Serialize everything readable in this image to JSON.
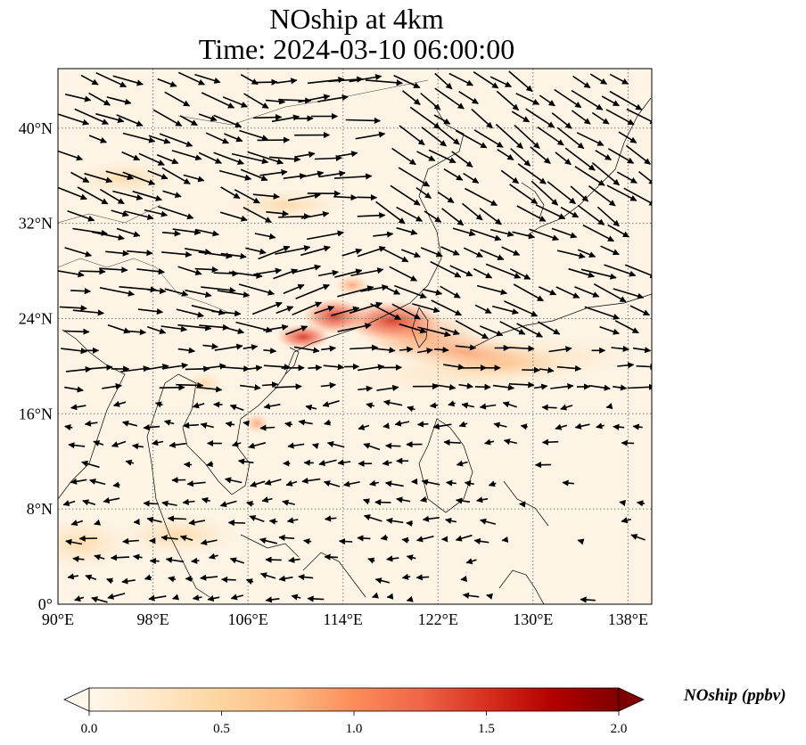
{
  "title": {
    "line1": "NOship at 4km",
    "line2": "Time: 2024-03-10 06:00:00"
  },
  "map": {
    "projection": "PlateCarree",
    "lon_range": [
      90,
      140
    ],
    "lat_range": [
      0,
      45
    ],
    "lon_ticks": [
      {
        "value": 90,
        "label": "90°E"
      },
      {
        "value": 98,
        "label": "98°E"
      },
      {
        "value": 106,
        "label": "106°E"
      },
      {
        "value": 114,
        "label": "114°E"
      },
      {
        "value": 122,
        "label": "122°E"
      },
      {
        "value": 130,
        "label": "130°E"
      },
      {
        "value": 138,
        "label": "138°E"
      }
    ],
    "lat_ticks": [
      {
        "value": 0,
        "label": "0°"
      },
      {
        "value": 8,
        "label": "8°N"
      },
      {
        "value": 16,
        "label": "16°N"
      },
      {
        "value": 24,
        "label": "24°N"
      },
      {
        "value": 32,
        "label": "32°N"
      },
      {
        "value": 40,
        "label": "40°N"
      }
    ],
    "gridlines": "dotted grey",
    "field_colormap": "OrRd",
    "wind_vectors": "black arrows"
  },
  "colorbar": {
    "label": "NOship (ppbv)",
    "min": 0.0,
    "max": 2.0,
    "extend": "both",
    "ticks": [
      {
        "value": 0.0,
        "label": "0.0"
      },
      {
        "value": 0.5,
        "label": "0.5"
      },
      {
        "value": 1.0,
        "label": "1.0"
      },
      {
        "value": 1.5,
        "label": "1.5"
      },
      {
        "value": 2.0,
        "label": "2.0"
      }
    ],
    "colors": [
      "#fff7ec",
      "#fee8c8",
      "#fdd49e",
      "#fdbb84",
      "#fc8d59",
      "#ef6548",
      "#d7301f",
      "#b30000",
      "#7f0000"
    ]
  }
}
